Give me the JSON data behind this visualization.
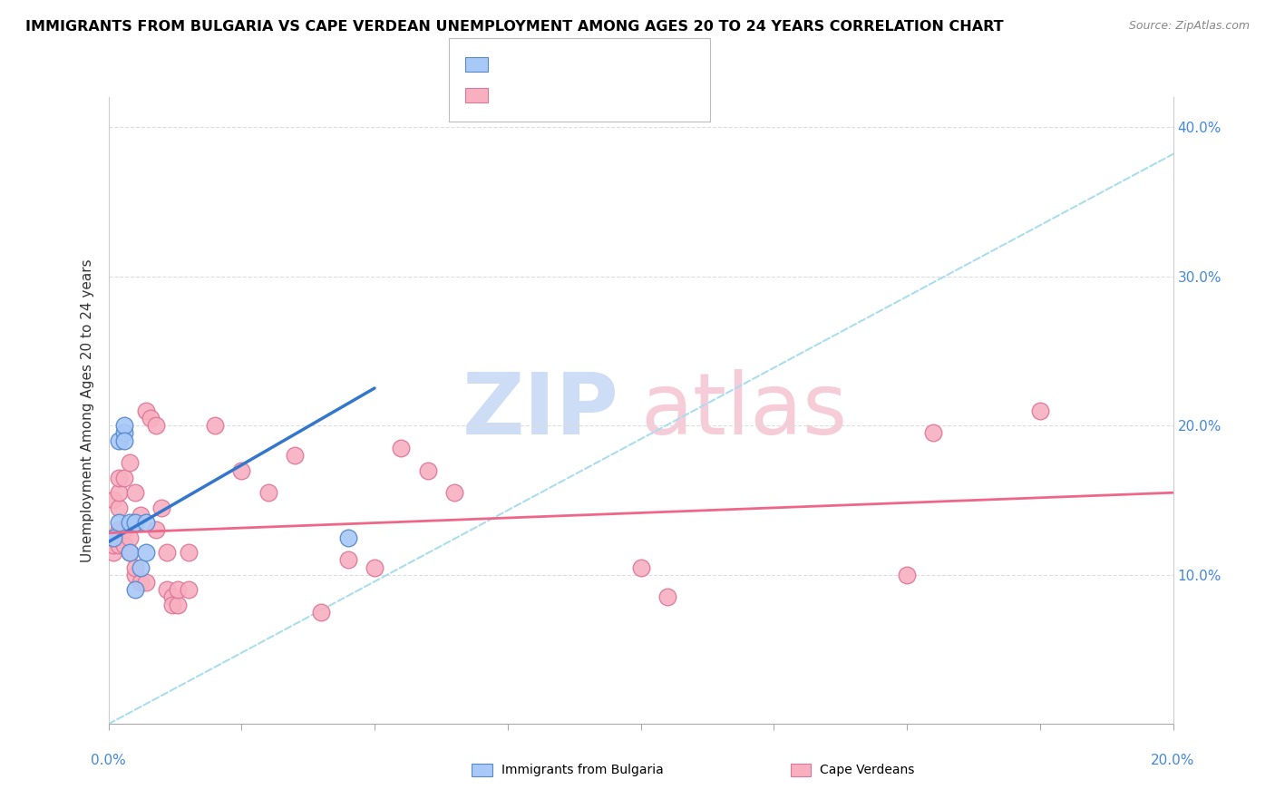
{
  "title": "IMMIGRANTS FROM BULGARIA VS CAPE VERDEAN UNEMPLOYMENT AMONG AGES 20 TO 24 YEARS CORRELATION CHART",
  "source": "Source: ZipAtlas.com",
  "ylabel": "Unemployment Among Ages 20 to 24 years",
  "xlim": [
    0.0,
    0.2
  ],
  "ylim": [
    0.0,
    0.42
  ],
  "yticks": [
    0.0,
    0.1,
    0.2,
    0.3,
    0.4
  ],
  "ytick_labels_right": [
    "",
    "10.0%",
    "20.0%",
    "30.0%",
    "40.0%"
  ],
  "xticks": [
    0.0,
    0.025,
    0.05,
    0.075,
    0.1,
    0.125,
    0.15,
    0.175,
    0.2
  ],
  "bulgaria_color": "#a8c8f8",
  "bulgaria_edge": "#5588cc",
  "capeverde_color": "#f8b0c0",
  "capeverde_edge": "#dd7799",
  "line1_color": "#3377cc",
  "line2_color": "#ee6688",
  "dashed_color": "#aaddee",
  "watermark_zip_color": "#ccddf5",
  "watermark_atlas_color": "#f5ccd8",
  "bulgaria_x": [
    0.001,
    0.002,
    0.002,
    0.003,
    0.003,
    0.003,
    0.004,
    0.004,
    0.005,
    0.005,
    0.006,
    0.007,
    0.007,
    0.045
  ],
  "bulgaria_y": [
    0.125,
    0.135,
    0.19,
    0.195,
    0.2,
    0.19,
    0.135,
    0.115,
    0.09,
    0.135,
    0.105,
    0.135,
    0.115,
    0.125
  ],
  "capeverde_x": [
    0.001,
    0.001,
    0.001,
    0.001,
    0.002,
    0.002,
    0.002,
    0.002,
    0.002,
    0.003,
    0.003,
    0.003,
    0.004,
    0.004,
    0.004,
    0.005,
    0.005,
    0.005,
    0.006,
    0.006,
    0.007,
    0.007,
    0.008,
    0.009,
    0.009,
    0.01,
    0.011,
    0.011,
    0.012,
    0.012,
    0.013,
    0.013,
    0.015,
    0.015,
    0.02,
    0.025,
    0.03,
    0.035,
    0.04,
    0.045,
    0.05,
    0.055,
    0.06,
    0.065,
    0.1,
    0.105,
    0.15,
    0.155,
    0.175
  ],
  "capeverde_y": [
    0.115,
    0.12,
    0.125,
    0.15,
    0.12,
    0.13,
    0.145,
    0.155,
    0.165,
    0.12,
    0.13,
    0.165,
    0.115,
    0.125,
    0.175,
    0.1,
    0.105,
    0.155,
    0.095,
    0.14,
    0.095,
    0.21,
    0.205,
    0.13,
    0.2,
    0.145,
    0.09,
    0.115,
    0.085,
    0.08,
    0.08,
    0.09,
    0.09,
    0.115,
    0.2,
    0.17,
    0.155,
    0.18,
    0.075,
    0.11,
    0.105,
    0.185,
    0.17,
    0.155,
    0.105,
    0.085,
    0.1,
    0.195,
    0.21
  ],
  "line1_x0": 0.0,
  "line1_y0": 0.122,
  "line1_x1": 0.05,
  "line1_y1": 0.225,
  "line2_x0": 0.0,
  "line2_y0": 0.128,
  "line2_x1": 0.2,
  "line2_y1": 0.155
}
